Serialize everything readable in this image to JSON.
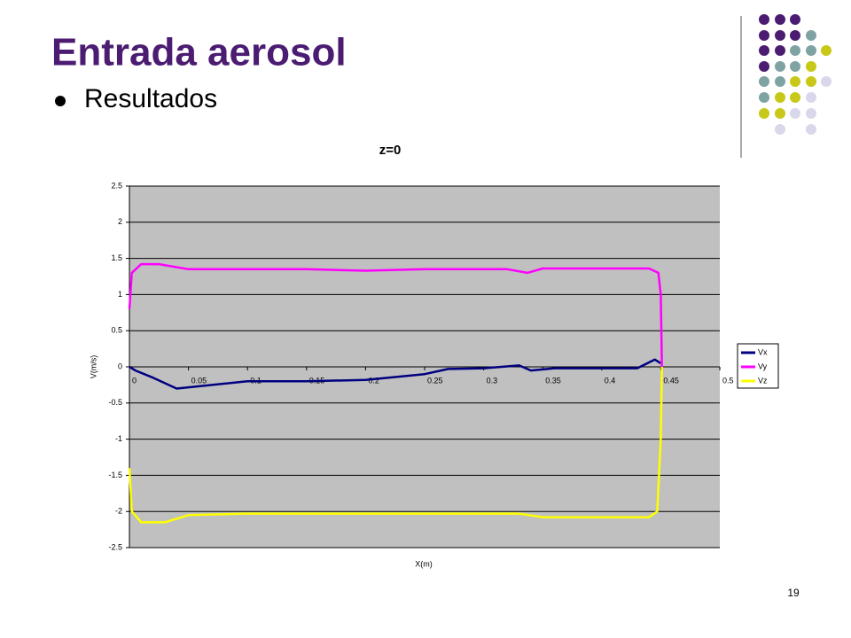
{
  "header": {
    "title": "Entrada aerosol",
    "bullet": "Resultados",
    "page_number": "19"
  },
  "chart_data": {
    "type": "line",
    "title": "z=0",
    "xlabel": "X(m)",
    "ylabel": "V(m/s)",
    "xlim": [
      0,
      0.5
    ],
    "xticks": [
      0,
      0.05,
      0.1,
      0.15,
      0.2,
      0.25,
      0.3,
      0.35,
      0.4,
      0.45,
      0.5
    ],
    "ylim": [
      -2.5,
      2.5
    ],
    "yticks": [
      -2.5,
      -2,
      -1.5,
      -1,
      -0.5,
      0,
      0.5,
      1,
      1.5,
      2,
      2.5
    ],
    "grid": true,
    "legend": "right",
    "background": "#c0c0c0",
    "series": [
      {
        "name": "Vx",
        "color": "#000080",
        "x": [
          0,
          0.005,
          0.02,
          0.04,
          0.07,
          0.1,
          0.15,
          0.2,
          0.25,
          0.27,
          0.3,
          0.33,
          0.34,
          0.36,
          0.43,
          0.445,
          0.45
        ],
        "values": [
          0,
          -0.05,
          -0.15,
          -0.3,
          -0.25,
          -0.2,
          -0.2,
          -0.18,
          -0.1,
          -0.03,
          -0.02,
          0.02,
          -0.05,
          -0.02,
          -0.02,
          0.1,
          0.05
        ]
      },
      {
        "name": "Vy",
        "color": "#ff00ff",
        "x": [
          0,
          0.002,
          0.01,
          0.025,
          0.05,
          0.1,
          0.15,
          0.2,
          0.25,
          0.32,
          0.337,
          0.35,
          0.44,
          0.448,
          0.45,
          0.451
        ],
        "values": [
          0.8,
          1.3,
          1.42,
          1.42,
          1.35,
          1.35,
          1.35,
          1.33,
          1.35,
          1.35,
          1.3,
          1.36,
          1.36,
          1.3,
          1.0,
          0
        ]
      },
      {
        "name": "Vz",
        "color": "#ffff00",
        "x": [
          0,
          0.002,
          0.01,
          0.03,
          0.05,
          0.1,
          0.2,
          0.33,
          0.35,
          0.44,
          0.447,
          0.45,
          0.451
        ],
        "values": [
          -1.4,
          -2.0,
          -2.15,
          -2.15,
          -2.05,
          -2.03,
          -2.03,
          -2.03,
          -2.08,
          -2.08,
          -2.0,
          -1.0,
          0
        ]
      }
    ]
  }
}
